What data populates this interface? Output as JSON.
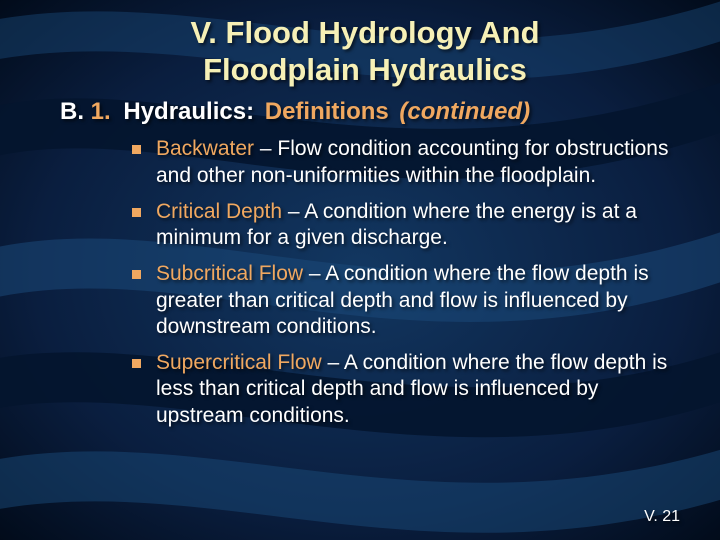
{
  "colors": {
    "bg_dark": "#000814",
    "bg_mid": "#0a1e3f",
    "wave_light": "#1a4a7a",
    "wave_dark": "#04152e",
    "title": "#f6f0b6",
    "accent_orange": "#f0a860",
    "text_white": "#ffffff",
    "bullet": "#f0a860"
  },
  "typography": {
    "title_size": 31,
    "sub_size": 24,
    "body_size": 21,
    "footer_size": 16,
    "font_family": "Tahoma, Arial, sans-serif"
  },
  "title_line1": "V. Flood Hydrology And",
  "title_line2": "Floodplain Hydraulics",
  "sub": {
    "b": "B.",
    "one": "1.",
    "h": "Hydraulics:",
    "d": "Definitions",
    "c": "(continued)"
  },
  "items": [
    {
      "term": "Backwater",
      "def": " – Flow condition accounting for obstructions and other non-uniformities within the floodplain."
    },
    {
      "term": "Critical Depth",
      "def": " – A condition where the energy is at a minimum for a given discharge."
    },
    {
      "term": "Subcritical Flow",
      "def": " – A condition where the flow depth is greater than critical depth and flow is influenced by downstream conditions."
    },
    {
      "term": "Supercritical Flow",
      "def": " – A condition where the flow depth is less than critical depth and flow is influenced by upstream conditions."
    }
  ],
  "footer": "V. 21"
}
